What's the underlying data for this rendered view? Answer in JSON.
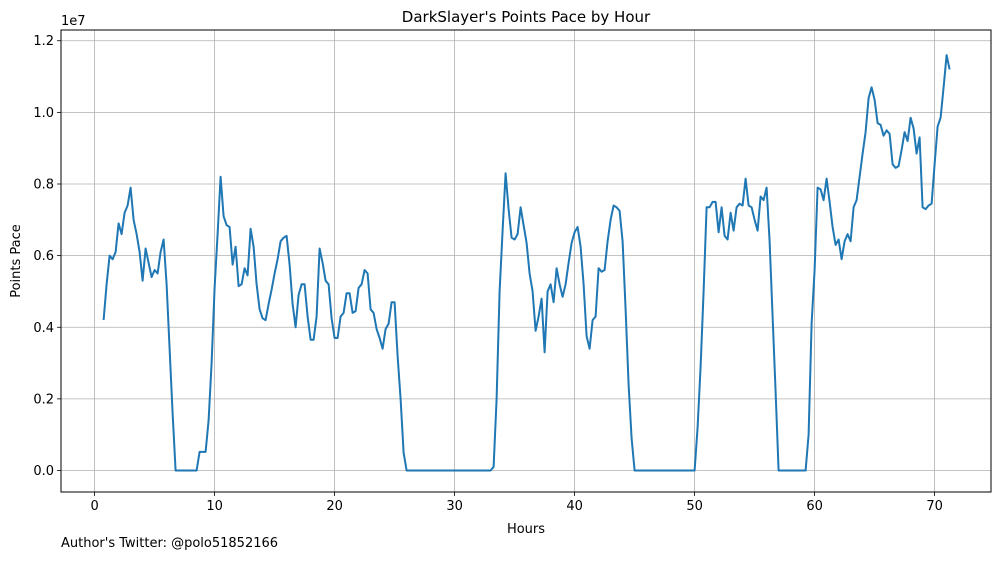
{
  "chart_data": {
    "type": "line",
    "title": "DarkSlayer's Points Pace by Hour",
    "xlabel": "Hours",
    "ylabel": "Points Pace",
    "y_offset_label": "1e7",
    "xlim": [
      -2.8,
      74.7
    ],
    "ylim": [
      -0.06,
      1.23
    ],
    "xticks": [
      0,
      10,
      20,
      30,
      40,
      50,
      60,
      70
    ],
    "yticks": [
      0.0,
      0.2,
      0.4,
      0.6,
      0.8,
      1.0,
      1.2
    ],
    "ytick_labels": [
      "0.0",
      "0.2",
      "0.4",
      "0.6",
      "0.8",
      "1.0",
      "1.2"
    ],
    "grid": true,
    "color": "#1f77b4",
    "y_scale": "x1e7",
    "series": [
      {
        "x": [
          0.75,
          1.0,
          1.25,
          1.5,
          1.75,
          2.0,
          2.25,
          2.5,
          2.75,
          3.0,
          3.25,
          3.5,
          3.75,
          4.0,
          4.25,
          4.5,
          4.75,
          5.0,
          5.25,
          5.5,
          5.75,
          6.0,
          6.25,
          6.5,
          6.75,
          7.0,
          7.25,
          7.5,
          7.75,
          8.0,
          8.25,
          8.5,
          8.75,
          9.0,
          9.25,
          9.5,
          9.75,
          10.0,
          10.25,
          10.5,
          10.75,
          11.0,
          11.25,
          11.5,
          11.75,
          12.0,
          12.25,
          12.5,
          12.75,
          13.0,
          13.25,
          13.5,
          13.75,
          14.0,
          14.25,
          14.5,
          14.75,
          15.0,
          15.25,
          15.5,
          15.75,
          16.0,
          16.25,
          16.5,
          16.75,
          17.0,
          17.25,
          17.5,
          17.75,
          18.0,
          18.25,
          18.5,
          18.75,
          19.0,
          19.25,
          19.5,
          19.75,
          20.0,
          20.25,
          20.5,
          20.75,
          21.0,
          21.25,
          21.5,
          21.75,
          22.0,
          22.25,
          22.5,
          22.75,
          23.0,
          23.25,
          23.5,
          23.75,
          24.0,
          24.25,
          24.5,
          24.75,
          25.0,
          25.25,
          25.5,
          25.75,
          26.0,
          33.0,
          33.25,
          33.5,
          33.75,
          34.0,
          34.25,
          34.5,
          34.75,
          35.0,
          35.25,
          35.5,
          35.75,
          36.0,
          36.25,
          36.5,
          36.75,
          37.0,
          37.25,
          37.5,
          37.75,
          38.0,
          38.25,
          38.5,
          38.75,
          39.0,
          39.25,
          39.5,
          39.75,
          40.0,
          40.25,
          40.5,
          40.75,
          41.0,
          41.25,
          41.5,
          41.75,
          42.0,
          42.25,
          42.5,
          42.75,
          43.0,
          43.25,
          43.5,
          43.75,
          44.0,
          44.25,
          44.5,
          44.75,
          45.0,
          50.0,
          50.25,
          50.5,
          50.75,
          51.0,
          51.25,
          51.5,
          51.75,
          52.0,
          52.25,
          52.5,
          52.75,
          53.0,
          53.25,
          53.5,
          53.75,
          54.0,
          54.25,
          54.5,
          54.75,
          55.0,
          55.25,
          55.5,
          55.75,
          56.0,
          56.25,
          56.5,
          56.75,
          57.0,
          59.25,
          59.5,
          59.75,
          60.0,
          60.25,
          60.5,
          60.75,
          61.0,
          61.25,
          61.5,
          61.75,
          62.0,
          62.25,
          62.5,
          62.75,
          63.0,
          63.25,
          63.5,
          63.75,
          64.0,
          64.25,
          64.5,
          64.75,
          65.0,
          65.25,
          65.5,
          65.75,
          66.0,
          66.25,
          66.5,
          66.75,
          67.0,
          67.25,
          67.5,
          67.75,
          68.0,
          68.25,
          68.5,
          68.75,
          69.0,
          69.25,
          69.5,
          69.75,
          70.0,
          70.25,
          70.5,
          70.75,
          71.0,
          71.25
        ],
        "y": [
          0.42,
          0.52,
          0.6,
          0.59,
          0.61,
          0.69,
          0.66,
          0.72,
          0.74,
          0.79,
          0.7,
          0.66,
          0.61,
          0.53,
          0.62,
          0.58,
          0.54,
          0.56,
          0.55,
          0.61,
          0.645,
          0.52,
          0.34,
          0.16,
          0.0,
          0.0,
          0.0,
          0.0,
          0.0,
          0.0,
          0.0,
          0.0,
          0.052,
          0.052,
          0.052,
          0.14,
          0.3,
          0.51,
          0.66,
          0.82,
          0.71,
          0.685,
          0.68,
          0.575,
          0.625,
          0.515,
          0.52,
          0.565,
          0.545,
          0.675,
          0.625,
          0.52,
          0.45,
          0.425,
          0.42,
          0.465,
          0.505,
          0.55,
          0.59,
          0.64,
          0.65,
          0.655,
          0.575,
          0.465,
          0.4,
          0.49,
          0.52,
          0.52,
          0.43,
          0.365,
          0.365,
          0.43,
          0.62,
          0.58,
          0.53,
          0.52,
          0.425,
          0.37,
          0.37,
          0.43,
          0.44,
          0.495,
          0.495,
          0.44,
          0.445,
          0.51,
          0.52,
          0.56,
          0.55,
          0.45,
          0.44,
          0.395,
          0.37,
          0.34,
          0.395,
          0.41,
          0.47,
          0.47,
          0.32,
          0.2,
          0.05,
          0.0,
          0.0,
          0.01,
          0.2,
          0.5,
          0.67,
          0.83,
          0.73,
          0.65,
          0.645,
          0.66,
          0.735,
          0.685,
          0.635,
          0.55,
          0.5,
          0.39,
          0.43,
          0.48,
          0.33,
          0.5,
          0.52,
          0.47,
          0.565,
          0.52,
          0.485,
          0.52,
          0.58,
          0.635,
          0.665,
          0.68,
          0.625,
          0.52,
          0.375,
          0.34,
          0.42,
          0.43,
          0.565,
          0.555,
          0.56,
          0.64,
          0.7,
          0.74,
          0.735,
          0.725,
          0.64,
          0.45,
          0.24,
          0.09,
          0.0,
          0.0,
          0.12,
          0.29,
          0.5,
          0.735,
          0.735,
          0.75,
          0.75,
          0.665,
          0.735,
          0.655,
          0.645,
          0.72,
          0.67,
          0.735,
          0.745,
          0.74,
          0.815,
          0.74,
          0.735,
          0.7,
          0.67,
          0.765,
          0.755,
          0.79,
          0.64,
          0.43,
          0.22,
          0.0,
          0.0,
          0.1,
          0.41,
          0.56,
          0.79,
          0.785,
          0.755,
          0.815,
          0.75,
          0.68,
          0.63,
          0.645,
          0.59,
          0.64,
          0.66,
          0.64,
          0.735,
          0.755,
          0.82,
          0.885,
          0.945,
          1.04,
          1.07,
          1.035,
          0.97,
          0.965,
          0.935,
          0.95,
          0.94,
          0.855,
          0.845,
          0.85,
          0.895,
          0.945,
          0.92,
          0.985,
          0.955,
          0.885,
          0.93,
          0.735,
          0.73,
          0.74,
          0.745,
          0.855,
          0.96,
          0.985,
          1.07,
          1.16,
          1.12
        ]
      }
    ]
  },
  "footer_text": "Author's Twitter: @polo51852166"
}
